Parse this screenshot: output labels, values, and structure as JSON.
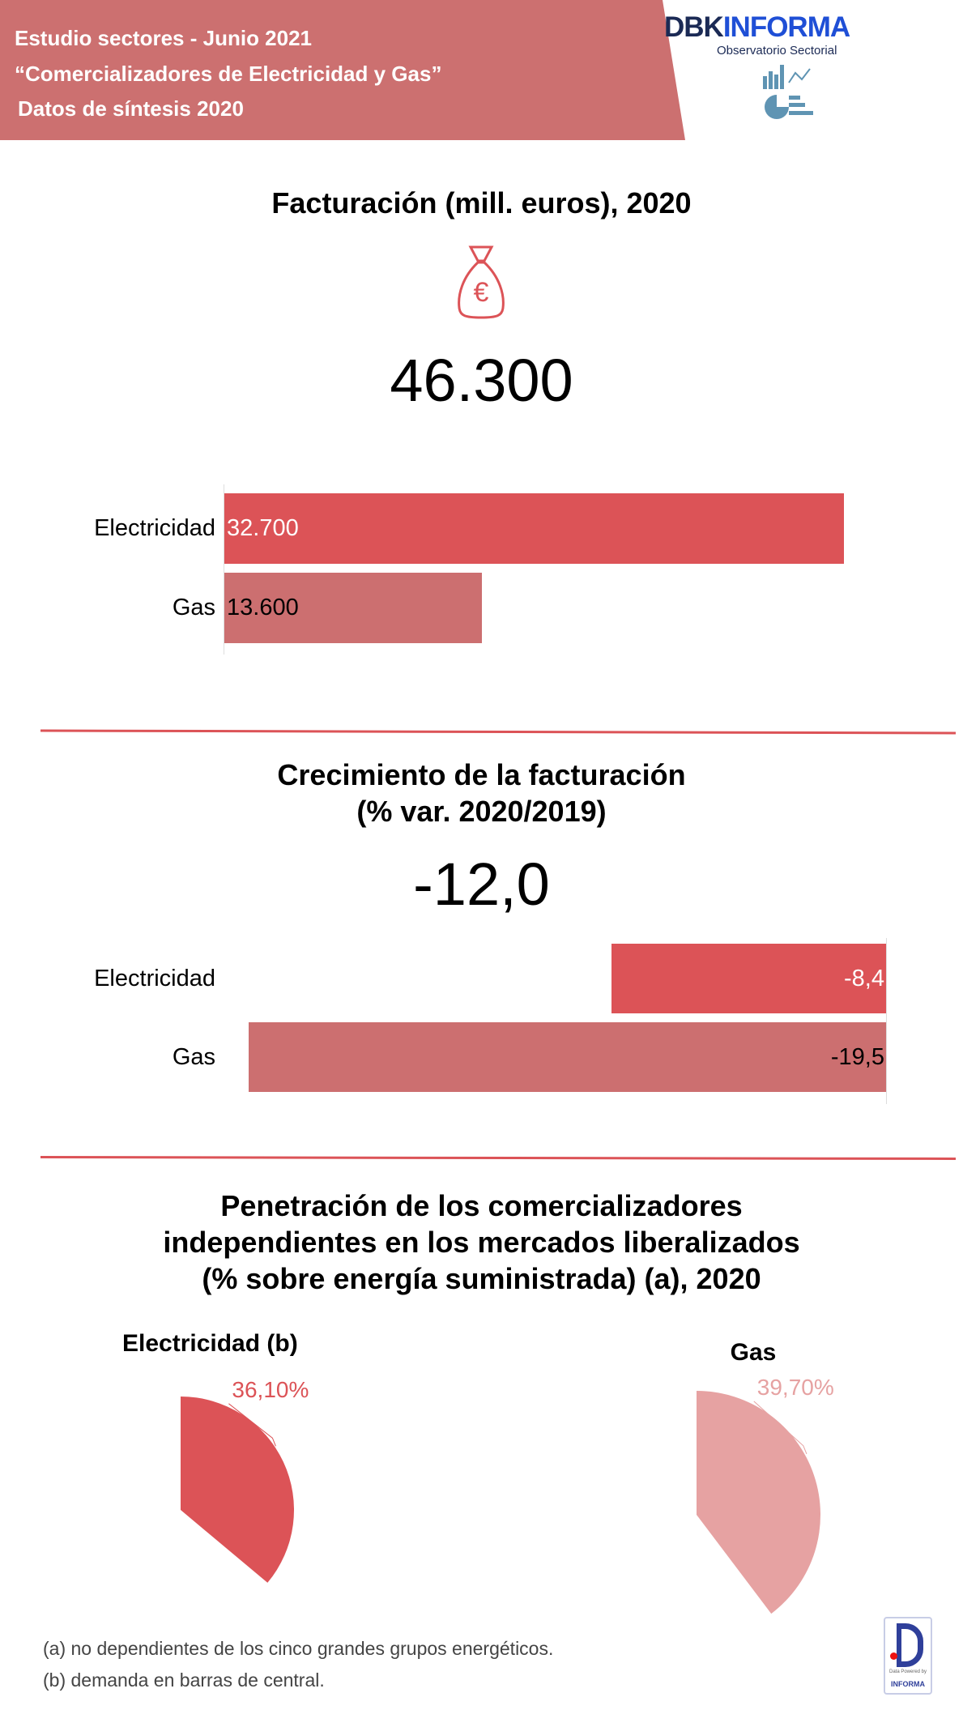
{
  "header": {
    "line1": "Estudio sectores - Junio 2021",
    "line2": "“Comercializadores de Electricidad y Gas”",
    "line3": "Datos de síntesis 2020",
    "logo_text_dark": "DBK",
    "logo_text_blue": "INFORMA",
    "logo_subtitle": "Observatorio Sectorial",
    "band_color": "#cc7070"
  },
  "section1": {
    "title": "Facturación (mill. euros), 2020",
    "icon": "money-bag-euro-icon",
    "total": "46.300"
  },
  "section2": {
    "title_line1": "Crecimiento de la facturación",
    "title_line2": "(% var. 2020/2019)",
    "total": "-12,0"
  },
  "section3": {
    "title_line1": "Penetración de los comercializadores",
    "title_line2": "independientes en los mercados liberalizados",
    "title_line3": "(% sobre energía suministrada) (a), 2020",
    "pie_titles": [
      "Electricidad (b)",
      "Gas"
    ]
  },
  "chart_data": [
    {
      "type": "bar",
      "orientation": "horizontal",
      "categories": [
        "Electricidad",
        "Gas"
      ],
      "values": [
        32700,
        13600
      ],
      "labels": [
        "32.700",
        "13.600"
      ],
      "colors": [
        "#dc5357",
        "#cc6f70"
      ],
      "label_colors": [
        "#ffffff",
        "#000000"
      ]
    },
    {
      "type": "bar",
      "orientation": "horizontal",
      "categories": [
        "Electricidad",
        "Gas"
      ],
      "values": [
        -8.4,
        -19.5
      ],
      "labels": [
        "-8,4",
        "-19,5"
      ],
      "colors": [
        "#dc5357",
        "#cc6f70"
      ],
      "label_colors": [
        "#ffffff",
        "#000000"
      ]
    },
    {
      "type": "pie",
      "title": "Electricidad (b)",
      "values": [
        36.1
      ],
      "labels": [
        "36,10%"
      ],
      "color": "#dc5357"
    },
    {
      "type": "pie",
      "title": "Gas",
      "values": [
        39.7
      ],
      "labels": [
        "39,70%"
      ],
      "color": "#e6a2a2"
    }
  ],
  "footnotes": [
    "(a) no dependientes de los cinco grandes grupos energéticos.",
    "(b) demanda en barras de central."
  ],
  "badge": {
    "small_text": "Data Powered by",
    "brand": "INFORMA"
  }
}
